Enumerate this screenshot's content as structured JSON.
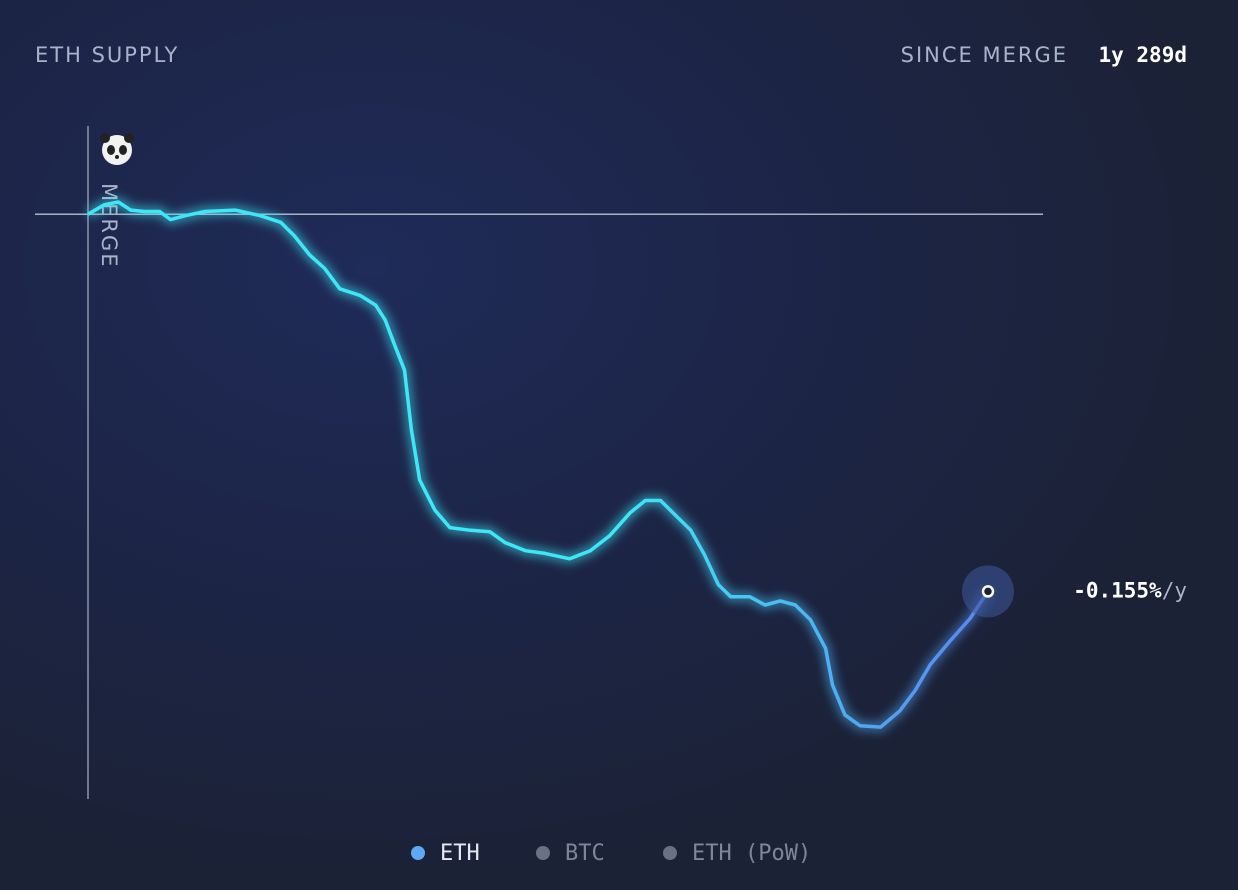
{
  "chart_data": {
    "type": "line",
    "title": "ETH SUPPLY",
    "period_label": "SINCE MERGE",
    "period_value": "1y 289d",
    "marker_label": "MERGE",
    "end_label": "-0.155%",
    "end_label_unit": "/y",
    "x": [
      0,
      12,
      22,
      31,
      41,
      52,
      60,
      71,
      85,
      107,
      125,
      140,
      150,
      161,
      172,
      183,
      198,
      209,
      216,
      223,
      230,
      235,
      241,
      252,
      263,
      278,
      292,
      303,
      318,
      332,
      350,
      365,
      379,
      394,
      405,
      416,
      427,
      438,
      448,
      458,
      467,
      481,
      492,
      503,
      514,
      525,
      536,
      541,
      550,
      561,
      576,
      590,
      601,
      612,
      626,
      641,
      654
    ],
    "series": [
      {
        "name": "ETH",
        "color": "#5ea8f5",
        "values": [
          0,
          0.007,
          0.009,
          0.003,
          0.002,
          0.002,
          -0.004,
          -0.001,
          0.002,
          0.003,
          -0.001,
          -0.006,
          -0.016,
          -0.03,
          -0.04,
          -0.055,
          -0.06,
          -0.067,
          -0.078,
          -0.097,
          -0.115,
          -0.159,
          -0.196,
          -0.218,
          -0.231,
          -0.233,
          -0.234,
          -0.242,
          -0.248,
          -0.25,
          -0.254,
          -0.248,
          -0.237,
          -0.22,
          -0.211,
          -0.211,
          -0.222,
          -0.233,
          -0.251,
          -0.273,
          -0.282,
          -0.282,
          -0.288,
          -0.285,
          -0.288,
          -0.299,
          -0.32,
          -0.347,
          -0.369,
          -0.377,
          -0.378,
          -0.366,
          -0.351,
          -0.332,
          -0.315,
          -0.298,
          -0.278
        ]
      }
    ],
    "line_colors": [
      "#3ee6f6",
      "#5a86ee"
    ],
    "legend": [
      {
        "name": "ETH",
        "color": "#5ea8f5"
      },
      {
        "name": "BTC",
        "color": "#6a7185"
      },
      {
        "name": "ETH (PoW)",
        "color": "#6a7185"
      }
    ],
    "xlim": [
      0,
      654
    ],
    "ylim": [
      -0.431,
      0.065
    ]
  }
}
